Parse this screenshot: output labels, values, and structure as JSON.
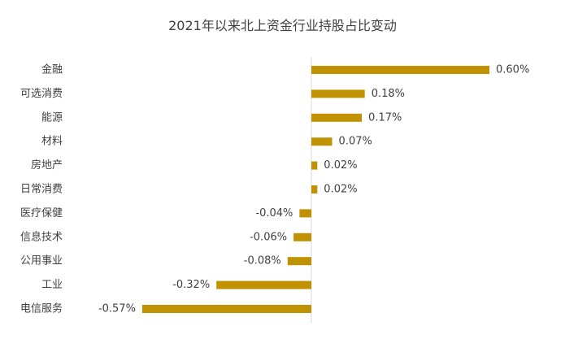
{
  "chart_data": {
    "type": "bar",
    "orientation": "horizontal",
    "title": "2021年以来北上资金行业持股占比变动",
    "xlabel": "",
    "ylabel": "",
    "categories": [
      "金融",
      "可选消费",
      "能源",
      "材料",
      "房地产",
      "日常消费",
      "医疗保健",
      "信息技术",
      "公用事业",
      "工业",
      "电信服务"
    ],
    "values": [
      0.6,
      0.18,
      0.17,
      0.07,
      0.02,
      0.02,
      -0.04,
      -0.06,
      -0.08,
      -0.32,
      -0.57
    ],
    "value_labels": [
      "0.60%",
      "0.18%",
      "0.17%",
      "0.07%",
      "0.02%",
      "0.02%",
      "-0.04%",
      "-0.06%",
      "-0.08%",
      "-0.32%",
      "-0.57%"
    ],
    "xlim": [
      -0.6,
      0.65
    ],
    "bar_color": "#C09100",
    "axis_color": "#D9D9D9",
    "grid": false,
    "legend": "none"
  }
}
